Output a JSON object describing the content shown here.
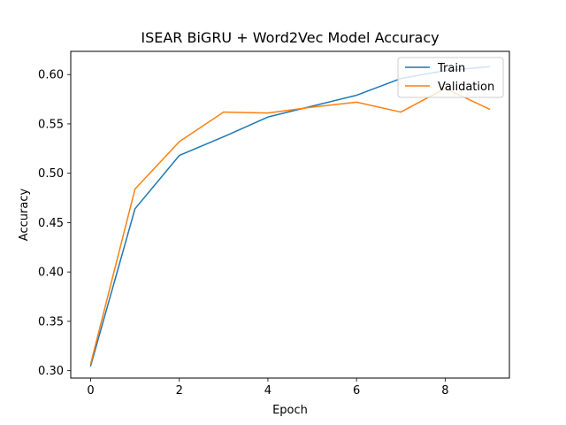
{
  "chart_data": {
    "type": "line",
    "title": "ISEAR BiGRU + Word2Vec Model Accuracy",
    "xlabel": "Epoch",
    "ylabel": "Accuracy",
    "x": [
      0,
      1,
      2,
      3,
      4,
      5,
      6,
      7,
      8,
      9
    ],
    "xlim": [
      -0.45,
      9.45
    ],
    "ylim": [
      0.2925,
      0.6235
    ],
    "xticks": [
      0,
      2,
      4,
      6,
      8
    ],
    "xtick_labels": [
      "0",
      "2",
      "4",
      "6",
      "8"
    ],
    "yticks": [
      0.3,
      0.35,
      0.4,
      0.45,
      0.5,
      0.55,
      0.6
    ],
    "ytick_labels": [
      "0.30",
      "0.35",
      "0.40",
      "0.45",
      "0.50",
      "0.55",
      "0.60"
    ],
    "grid": false,
    "legend": "top-right",
    "series": [
      {
        "name": "Train",
        "color": "#1f77b4",
        "values": [
          0.305,
          0.464,
          0.518,
          0.537,
          0.557,
          0.568,
          0.579,
          0.596,
          0.604,
          0.608
        ]
      },
      {
        "name": "Validation",
        "color": "#ff7f0e",
        "values": [
          0.307,
          0.484,
          0.532,
          0.562,
          0.561,
          0.567,
          0.572,
          0.562,
          0.586,
          0.565
        ]
      }
    ]
  }
}
